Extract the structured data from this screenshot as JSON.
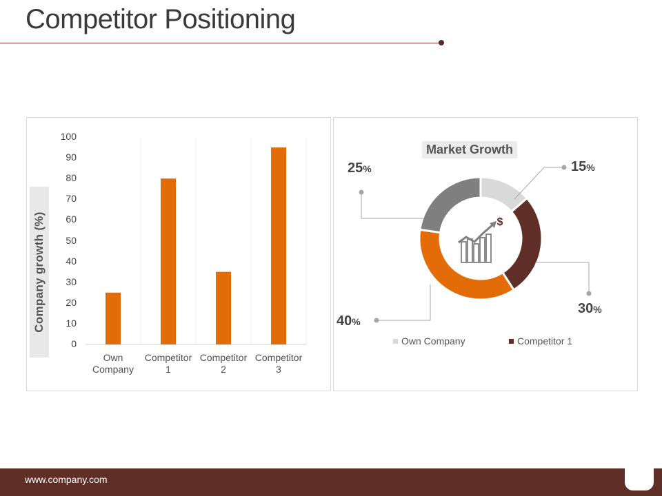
{
  "slide": {
    "title": "Competitor Positioning",
    "footer": "www.company.com"
  },
  "colors": {
    "accent": "#e36c09",
    "brown": "#5e2e27",
    "grey": "#7f7f7f",
    "light_grey": "#d9d9d9"
  },
  "chart_data": [
    {
      "type": "bar",
      "categories": [
        "Own Company",
        "Competitor 1",
        "Competitor 2",
        "Competitor 3"
      ],
      "category_lines": [
        [
          "Own",
          "Company"
        ],
        [
          "Competitor",
          "1"
        ],
        [
          "Competitor",
          "2"
        ],
        [
          "Competitor",
          "3"
        ]
      ],
      "values": [
        25,
        80,
        35,
        95
      ],
      "ylabel": "Company growth (%)",
      "ylim": [
        0,
        100
      ],
      "yticks": [
        0,
        10,
        20,
        30,
        40,
        50,
        60,
        70,
        80,
        90,
        100
      ],
      "grid": "vertical category separators",
      "bar_color": "#e36c09"
    },
    {
      "type": "pie",
      "variant": "donut",
      "title": "Market Growth",
      "slices": [
        {
          "name": "Own Company",
          "value": 15,
          "color": "#d9d9d9"
        },
        {
          "name": "Competitor 1",
          "value": 30,
          "color": "#5e2e27"
        },
        {
          "name": "",
          "value": 40,
          "color": "#e36c09"
        },
        {
          "name": "",
          "value": 25,
          "color": "#7f7f7f"
        }
      ],
      "labels": {
        "own": "15",
        "comp1": "30",
        "orange": "40",
        "grey": "25",
        "unit": "%"
      },
      "legend": [
        "Own Company",
        "Competitor 1"
      ],
      "legend_position": "bottom",
      "center_icon": "growth-chart-dollar-icon"
    }
  ]
}
